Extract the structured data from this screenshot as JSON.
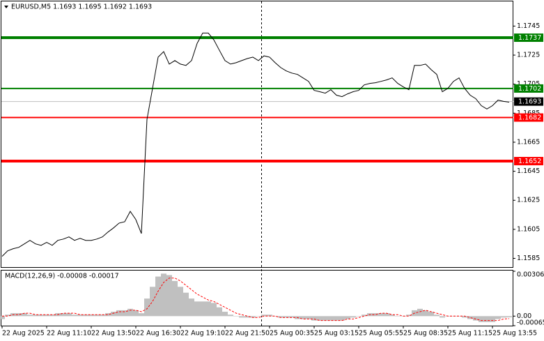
{
  "chart_data": [
    {
      "type": "line",
      "title": "EURUSD,M5  1.1693 1.1695 1.1692 1.1693",
      "categories": [
        "22 Aug 2025",
        null,
        null,
        null,
        null,
        null,
        null,
        null,
        "22 Aug 11:10",
        null,
        null,
        null,
        null,
        null,
        null,
        null,
        "22 Aug 13:50",
        null,
        null,
        null,
        null,
        null,
        null,
        null,
        "22 Aug 16:30",
        null,
        null,
        null,
        null,
        null,
        null,
        null,
        "22 Aug 19:10",
        null,
        null,
        null,
        null,
        null,
        null,
        null,
        "22 Aug 21:50",
        null,
        null,
        null,
        null,
        null,
        null,
        null,
        "25 Aug 00:35",
        null,
        null,
        null,
        null,
        null,
        null,
        null,
        "25 Aug 03:15",
        null,
        null,
        null,
        null,
        null,
        null,
        null,
        "25 Aug 05:55",
        null,
        null,
        null,
        null,
        null,
        null,
        null,
        "25 Aug 08:35",
        null,
        null,
        null,
        null,
        null,
        null,
        null,
        "25 Aug 11:15",
        null,
        null,
        null,
        null,
        null,
        null,
        null,
        "25 Aug 13:55",
        null,
        null,
        null
      ],
      "values": [
        1.15864,
        1.15902,
        1.15917,
        1.15926,
        1.1595,
        1.15974,
        1.1595,
        1.1594,
        1.1596,
        1.1594,
        1.15974,
        1.15983,
        1.15998,
        1.15974,
        1.15988,
        1.15974,
        1.15974,
        1.15983,
        1.15998,
        1.16031,
        1.1606,
        1.16093,
        1.16102,
        1.16174,
        1.16117,
        1.16021,
        1.16807,
        1.17021,
        1.17236,
        1.17274,
        1.17188,
        1.17212,
        1.17188,
        1.17179,
        1.17212,
        1.17331,
        1.17402,
        1.17402,
        1.17355,
        1.17283,
        1.17212,
        1.17188,
        1.17198,
        1.17212,
        1.17226,
        1.17236,
        1.17212,
        1.17245,
        1.17236,
        1.17198,
        1.17164,
        1.17141,
        1.17126,
        1.17117,
        1.17093,
        1.17069,
        1.17007,
        1.16998,
        1.16988,
        1.17012,
        1.16974,
        1.16964,
        1.16983,
        1.16998,
        1.17007,
        1.17045,
        1.17055,
        1.1706,
        1.17069,
        1.17079,
        1.17093,
        1.17055,
        1.17031,
        1.17012,
        1.17179,
        1.17179,
        1.17188,
        1.1715,
        1.17117,
        1.16998,
        1.17021,
        1.17069,
        1.17093,
        1.17021,
        1.16974,
        1.1695,
        1.16902,
        1.16879,
        1.16902,
        1.1694,
        1.16931,
        1.16926
      ],
      "color": "#000000",
      "ylim": [
        1.1579,
        1.1762
      ],
      "yticks": [
        1.1745,
        1.1725,
        1.1705,
        1.1685,
        1.1665,
        1.1645,
        1.1625,
        1.1605,
        1.1585
      ],
      "levels": [
        {
          "value": 1.1737,
          "color": "#008000",
          "thick": true
        },
        {
          "value": 1.1702,
          "color": "#008000",
          "thick": false
        },
        {
          "value": 1.1682,
          "color": "#ff0000",
          "thick": false
        },
        {
          "value": 1.1652,
          "color": "#ff0000",
          "thick": true
        }
      ],
      "last_price": 1.1693,
      "last_price_color": "#000000"
    },
    {
      "type": "macd",
      "title": "MACD(12,26,9) -0.00008 -0.00017",
      "histogram": {
        "color": "#c0c0c0",
        "values": [
          -0.0002,
          0.0001,
          0.0002,
          0.0002,
          0.0002,
          0.0001,
          0.0001,
          0.0001,
          0.0001,
          0.0001,
          0.0002,
          0.0002,
          0.0002,
          0.0001,
          0.0001,
          0.0001,
          0.0001,
          0.0001,
          0.0001,
          0.0002,
          0.0003,
          0.0004,
          0.0004,
          0.0005,
          0.0004,
          0.0002,
          0.0012,
          0.002,
          0.0027,
          0.0029,
          0.0028,
          0.0024,
          0.002,
          0.0016,
          0.0012,
          0.001,
          0.001,
          0.001,
          0.0009,
          0.0006,
          0.0003,
          0.0001,
          0,
          -0.0001,
          -0.0001,
          -0.0001,
          0,
          0.0001,
          0.0001,
          0,
          -0.0001,
          -0.0001,
          -0.0001,
          -0.0002,
          -0.0002,
          -0.0002,
          -0.0003,
          -0.0003,
          -0.0003,
          -0.0003,
          -0.0003,
          -0.0003,
          -0.0002,
          -0.0001,
          0,
          0.0001,
          0.0002,
          0.0002,
          0.0002,
          0.0002,
          0.0001,
          0,
          0,
          0.0001,
          0.0004,
          0.0005,
          0.0004,
          0.0003,
          0.0001,
          -0.0001,
          0,
          0,
          0,
          -0.0001,
          -0.0002,
          -0.0003,
          -0.0004,
          -0.0004,
          -0.0004,
          -0.0002,
          -0.0001,
          -8e-05
        ]
      },
      "signal": {
        "color": "#ff0000",
        "values": [
          0,
          0,
          0.0001,
          0.0001,
          0.0002,
          0.0002,
          0.0001,
          0.0001,
          0.0001,
          0.0001,
          0.0001,
          0.0002,
          0.0002,
          0.0002,
          0.0001,
          0.0001,
          0.0001,
          0.0001,
          0.0001,
          0.0001,
          0.0002,
          0.0003,
          0.0003,
          0.0004,
          0.0004,
          0.0003,
          0.0005,
          0.001,
          0.0017,
          0.0023,
          0.0026,
          0.0026,
          0.0024,
          0.0021,
          0.0018,
          0.0015,
          0.0013,
          0.0011,
          0.001,
          0.0008,
          0.0006,
          0.0004,
          0.0002,
          0.0001,
          0,
          -0.0001,
          -0.0001,
          0,
          0,
          0,
          -0.0001,
          -0.0001,
          -0.0001,
          -0.0001,
          -0.0002,
          -0.0002,
          -0.0002,
          -0.0003,
          -0.0003,
          -0.0003,
          -0.0003,
          -0.0003,
          -0.0002,
          -0.0002,
          -0.0001,
          0,
          0.0001,
          0.0001,
          0.0002,
          0.0002,
          0.0001,
          0.0001,
          0,
          0,
          0.0002,
          0.0003,
          0.0004,
          0.0003,
          0.0002,
          0.0001,
          0,
          0,
          0,
          0,
          -0.0001,
          -0.0002,
          -0.0003,
          -0.0003,
          -0.0003,
          -0.0003,
          -0.0002,
          -0.00017
        ]
      },
      "ylim": [
        -0.00065,
        0.00306
      ],
      "yticks": [
        0.00306,
        {
          "value": 0,
          "label": "0.00"
        },
        -0.00065
      ]
    }
  ]
}
